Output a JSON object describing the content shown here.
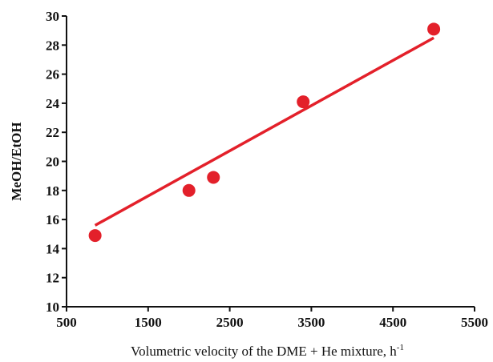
{
  "chart_data": {
    "type": "scatter",
    "title": "",
    "xlabel": "Volumetric velocity of the DME + He mixture, h",
    "xlabel_superscript": "-1",
    "ylabel": "MeOH/EtOH",
    "xlim": [
      500,
      5500
    ],
    "ylim": [
      10,
      30
    ],
    "x_ticks": [
      "500",
      "1500",
      "2500",
      "3500",
      "4500",
      "5500"
    ],
    "y_ticks": [
      "10",
      "12",
      "14",
      "16",
      "18",
      "20",
      "22",
      "24",
      "26",
      "28",
      "30"
    ],
    "grid": false,
    "legend": "none",
    "series": [
      {
        "kind": "points",
        "color": "#e3202a",
        "x": [
          850,
          2000,
          2300,
          3400,
          5000
        ],
        "y": [
          14.9,
          18.0,
          18.9,
          24.1,
          29.1
        ]
      },
      {
        "kind": "trendline",
        "color": "#e3202a",
        "x": [
          850,
          5000
        ],
        "y": [
          15.6,
          28.5
        ]
      }
    ]
  }
}
